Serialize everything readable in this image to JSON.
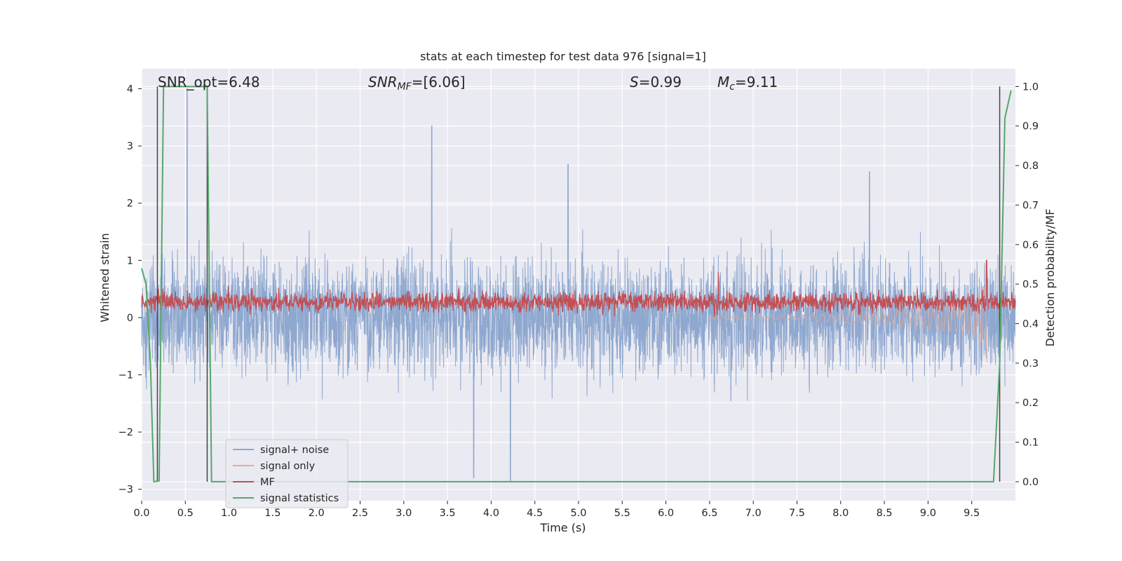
{
  "chart_data": {
    "type": "line",
    "title": "stats at each timestep for test data 976 [signal=1]",
    "xlabel": "Time (s)",
    "ylabel": "Whitened strain",
    "y2label": "Detection probability/MF",
    "xlim": [
      0,
      10
    ],
    "ylim": [
      -3.2,
      4.35
    ],
    "y2lim": [
      -0.048,
      1.045
    ],
    "xticks": [
      "0.0",
      "0.5",
      "1.0",
      "1.5",
      "2.0",
      "2.5",
      "3.0",
      "3.5",
      "4.0",
      "4.5",
      "5.0",
      "5.5",
      "6.0",
      "6.5",
      "7.0",
      "7.5",
      "8.0",
      "8.5",
      "9.0",
      "9.5"
    ],
    "xtick_values": [
      0,
      0.5,
      1,
      1.5,
      2,
      2.5,
      3,
      3.5,
      4,
      4.5,
      5,
      5.5,
      6,
      6.5,
      7,
      7.5,
      8,
      8.5,
      9,
      9.5
    ],
    "yticks": [
      "−3",
      "−2",
      "−1",
      "0",
      "1",
      "2",
      "3",
      "4"
    ],
    "ytick_values": [
      -3,
      -2,
      -1,
      0,
      1,
      2,
      3,
      4
    ],
    "y2ticks": [
      "0.0",
      "0.1",
      "0.2",
      "0.3",
      "0.4",
      "0.5",
      "0.6",
      "0.7",
      "0.8",
      "0.9",
      "1.0"
    ],
    "y2tick_values": [
      0,
      0.1,
      0.2,
      0.3,
      0.4,
      0.5,
      0.6,
      0.7,
      0.8,
      0.9,
      1.0
    ],
    "grid": true,
    "legend_position": "lower-left",
    "annotations": [
      {
        "id": "snr_opt",
        "text": "SNR_opt=6.48"
      },
      {
        "id": "snr_mf",
        "text": "=[6.06]"
      },
      {
        "id": "s_value",
        "text": "=0.99"
      },
      {
        "id": "mc_value",
        "text": "=9.11"
      }
    ],
    "series": [
      {
        "name": "signal+ noise",
        "color": "#8fa8cf",
        "description_range": [
          -2.85,
          4.0
        ],
        "approx_envelope": {
          "upper_typical": 1.3,
          "lower_typical": -1.4,
          "std": 0.75
        },
        "notable_peaks": [
          {
            "x": 0.52,
            "y": 4.0
          },
          {
            "x": 3.32,
            "y": 3.35
          },
          {
            "x": 4.88,
            "y": 2.68
          },
          {
            "x": 8.33,
            "y": 2.55
          },
          {
            "x": 3.8,
            "y": -2.8
          },
          {
            "x": 4.22,
            "y": -2.85
          }
        ]
      },
      {
        "name": "signal only",
        "color": "#e8a98f",
        "points": [
          [
            6.5,
            0.0
          ],
          [
            7.0,
            0.02
          ],
          [
            7.5,
            0.0
          ],
          [
            8.0,
            -0.05
          ],
          [
            8.5,
            -0.1
          ],
          [
            9.0,
            -0.15
          ],
          [
            9.3,
            -0.2
          ],
          [
            9.5,
            -0.25
          ],
          [
            9.6,
            -0.35
          ],
          [
            9.65,
            -0.5
          ],
          [
            9.68,
            -0.75
          ],
          [
            9.69,
            0.0
          ]
        ]
      },
      {
        "name": "MF",
        "color": "#c44e52",
        "axis": "right",
        "approx_mean": 0.455,
        "approx_range": [
          0.41,
          0.51
        ],
        "notable_peaks": [
          {
            "x": 9.67,
            "y": 0.56
          },
          {
            "x": 6.6,
            "y": 0.53
          }
        ]
      },
      {
        "name": "signal statistics",
        "color": "#55a868",
        "axis": "right",
        "points": [
          [
            0.0,
            0.54
          ],
          [
            0.05,
            0.5
          ],
          [
            0.1,
            0.3
          ],
          [
            0.14,
            0.0
          ],
          [
            0.2,
            0.002
          ],
          [
            0.25,
            1.0
          ],
          [
            0.7,
            1.0
          ],
          [
            0.75,
            1.0
          ],
          [
            0.8,
            0.0
          ],
          [
            9.75,
            0.0
          ],
          [
            9.82,
            0.3
          ],
          [
            9.88,
            0.92
          ],
          [
            9.95,
            0.99
          ]
        ]
      }
    ],
    "vertical_markers": [
      0.18,
      0.75,
      9.82
    ]
  }
}
